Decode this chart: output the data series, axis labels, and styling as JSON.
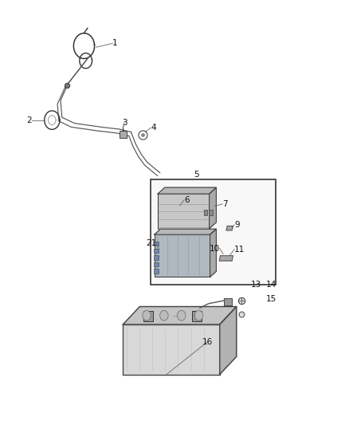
{
  "bg_color": "#ffffff",
  "fig_width": 4.38,
  "fig_height": 5.33,
  "dpi": 100,
  "label_fontsize": 7.5,
  "line_color": "#333333",
  "cable_color": "#555555",
  "box_edge_color": "#333333",
  "box_face_color": "#f8f8f8",
  "module_fc": "#c8c8c8",
  "module_ec": "#444444",
  "bcu_fc": "#b0b8c0",
  "bat_fc": "#d8d8d8",
  "bat_ec": "#444444"
}
